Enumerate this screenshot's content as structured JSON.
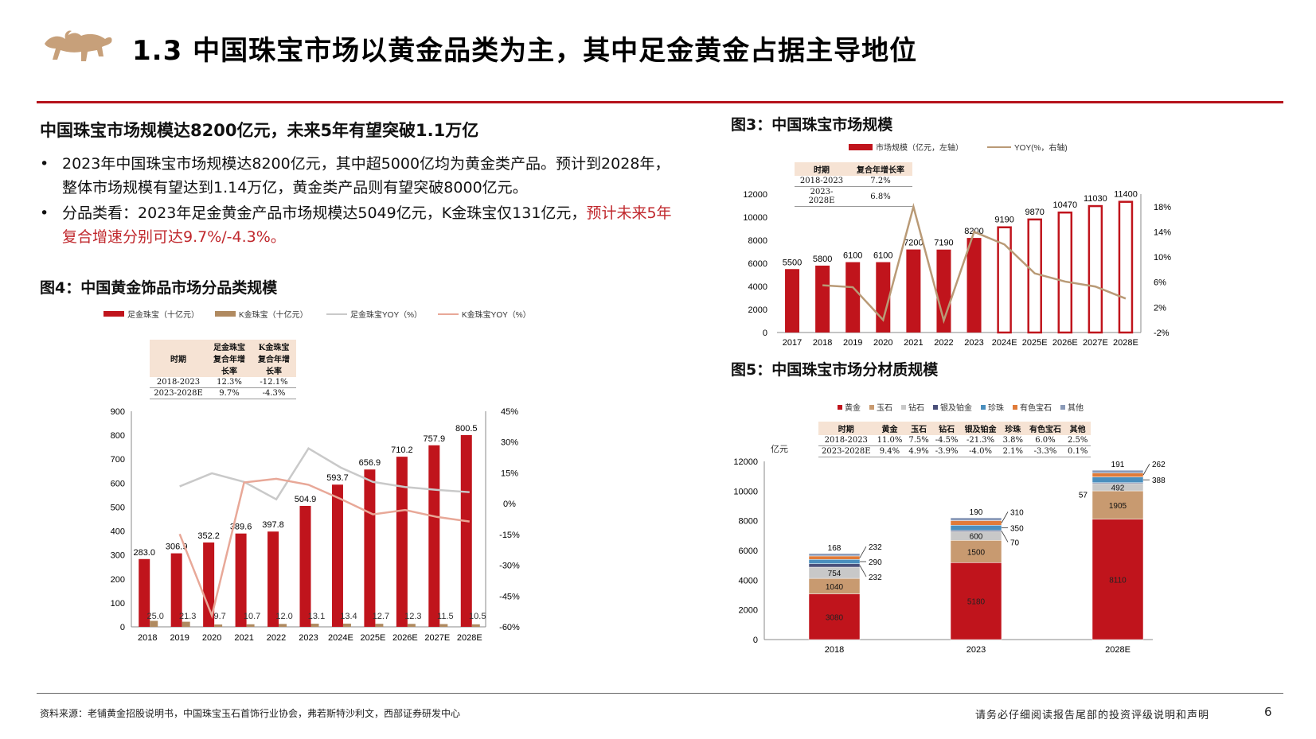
{
  "title": "1.3 中国珠宝市场以黄金品类为主，其中足金黄金占据主导地位",
  "left_heading": "中国珠宝市场规模达8200亿元，未来5年有望突破1.1万亿",
  "bullets": [
    {
      "text": "2023年中国珠宝市场规模达8200亿元，其中超5000亿均为黄金类产品。预计到2028年，整体市场规模有望达到1.14万亿，黄金类产品则有望突破8000亿元。",
      "red": ""
    },
    {
      "text": "分品类看：2023年足金黄金产品市场规模达5049亿元，K金珠宝仅131亿元，",
      "red": "预计未来5年复合增速分别可达9.7%/-4.3%。"
    }
  ],
  "fig4": {
    "title": "图4：中国黄金饰品市场分品类规模",
    "table": {
      "headers": [
        "时期",
        "足金珠宝复合年增长率",
        "K金珠宝复合年增长率"
      ],
      "rows": [
        [
          "2018-2023",
          "12.3%",
          "-12.1%"
        ],
        [
          "2023-2028E",
          "9.7%",
          "-4.3%"
        ]
      ]
    }
  },
  "fig3": {
    "title": "图3：中国珠宝市场规模",
    "table": {
      "headers": [
        "时期",
        "复合年增长率"
      ],
      "rows": [
        [
          "2018-2023",
          "7.2%"
        ],
        [
          "2023-2028E",
          "6.8%"
        ]
      ]
    }
  },
  "fig5": {
    "title": "图5：中国珠宝市场分材质规模",
    "table": {
      "headers": [
        "时期",
        "黄金",
        "玉石",
        "钻石",
        "银及铂金",
        "珍珠",
        "有色宝石",
        "其他"
      ],
      "rows": [
        [
          "2018-2023",
          "11.0%",
          "7.5%",
          "-4.5%",
          "-21.3%",
          "3.8%",
          "6.0%",
          "2.5%"
        ],
        [
          "2023-2028E",
          "9.4%",
          "4.9%",
          "-3.9%",
          "-4.0%",
          "2.1%",
          "-3.3%",
          "0.1%"
        ]
      ]
    }
  },
  "chart_data": [
    {
      "type": "bar",
      "title": "",
      "categories": [
        "2018",
        "2019",
        "2020",
        "2021",
        "2022",
        "2023",
        "2024E",
        "2025E",
        "2026E",
        "2027E",
        "2028E"
      ],
      "series": [
        {
          "name": "足金珠宝（十亿元）",
          "kind": "bar",
          "color": "#c0141c",
          "values": [
            283.0,
            306.9,
            352.2,
            389.6,
            397.8,
            504.9,
            593.7,
            656.9,
            710.2,
            757.9,
            800.5
          ]
        },
        {
          "name": "K金珠宝（十亿元）",
          "kind": "bar",
          "color": "#b08a60",
          "values": [
            25.0,
            21.3,
            9.7,
            10.7,
            12.0,
            13.1,
            13.4,
            12.7,
            12.3,
            11.5,
            10.5
          ]
        },
        {
          "name": "足金珠宝YOY（%）",
          "kind": "line",
          "axis": "right",
          "color": "#c9c9c9",
          "values": [
            null,
            8.4,
            14.8,
            10.6,
            2.1,
            26.9,
            17.6,
            10.6,
            8.1,
            6.7,
            5.6
          ]
        },
        {
          "name": "K金珠宝YOY（%）",
          "kind": "line",
          "axis": "right",
          "color": "#e8a898",
          "values": [
            null,
            -14.8,
            -54.5,
            10.3,
            12.1,
            9.2,
            2.3,
            -5.2,
            -3.1,
            -6.5,
            -8.7
          ]
        }
      ],
      "ylim": [
        0,
        900
      ],
      "y_ticks": [
        "0",
        "100",
        "200",
        "300",
        "400",
        "500",
        "600",
        "700",
        "800",
        "900"
      ],
      "y2lim": [
        -60,
        45
      ],
      "y2_ticks": [
        "-60%",
        "-45%",
        "-30%",
        "-15%",
        "0%",
        "15%",
        "30%",
        "45%"
      ]
    },
    {
      "type": "bar",
      "title": "",
      "categories": [
        "2017",
        "2018",
        "2019",
        "2020",
        "2021",
        "2022",
        "2023",
        "2024E",
        "2025E",
        "2026E",
        "2027E",
        "2028E"
      ],
      "series": [
        {
          "name": "市场规模（亿元，左轴）",
          "kind": "bar",
          "color": "#c0141c",
          "values": [
            5500,
            5800,
            6100,
            6100,
            7200,
            7190,
            8200,
            9190,
            9870,
            10470,
            11030,
            11400
          ],
          "forecast_from": 7
        },
        {
          "name": "YOY(%，右轴)",
          "kind": "line",
          "axis": "right",
          "color": "#b99a76",
          "values": [
            null,
            5.5,
            5.2,
            0.0,
            18.0,
            -0.1,
            14.0,
            12.0,
            7.4,
            6.1,
            5.3,
            3.4
          ]
        }
      ],
      "ylim": [
        0,
        12000
      ],
      "y_ticks": [
        "0",
        "2000",
        "4000",
        "6000",
        "8000",
        "10000",
        "12000"
      ],
      "y2lim": [
        -2,
        20
      ],
      "y2_ticks": [
        "-2%",
        "2%",
        "6%",
        "10%",
        "14%",
        "18%"
      ]
    },
    {
      "type": "bar",
      "stacked": true,
      "title": "",
      "ylabel": "亿元",
      "categories": [
        "2018",
        "2023",
        "2028E"
      ],
      "series": [
        {
          "name": "黄金",
          "color": "#c0141c",
          "values": [
            3080,
            5180,
            8110
          ]
        },
        {
          "name": "玉石",
          "color": "#c89a70",
          "values": [
            1040,
            1500,
            1905
          ]
        },
        {
          "name": "钻石",
          "color": "#c8c8c8",
          "values": [
            754,
            600,
            492
          ]
        },
        {
          "name": "银及铂金",
          "color": "#4a4f7a",
          "values": [
            232,
            70,
            57
          ]
        },
        {
          "name": "珍珠",
          "color": "#4a8fbe",
          "values": [
            290,
            350,
            388
          ]
        },
        {
          "name": "有色宝石",
          "color": "#e07b39",
          "values": [
            232,
            310,
            262
          ]
        },
        {
          "name": "其他",
          "color": "#8a9ab8",
          "values": [
            168,
            190,
            191
          ]
        }
      ],
      "ylim": [
        0,
        12000
      ],
      "y_ticks": [
        "0",
        "2000",
        "4000",
        "6000",
        "8000",
        "10000",
        "12000"
      ]
    }
  ],
  "source": "资料来源：老铺黄金招股说明书，中国珠宝玉石首饰行业协会，弗若斯特沙利文，西部证券研发中心",
  "disclaimer": "请务必仔细阅读报告尾部的投资评级说明和声明",
  "page_number": "6"
}
